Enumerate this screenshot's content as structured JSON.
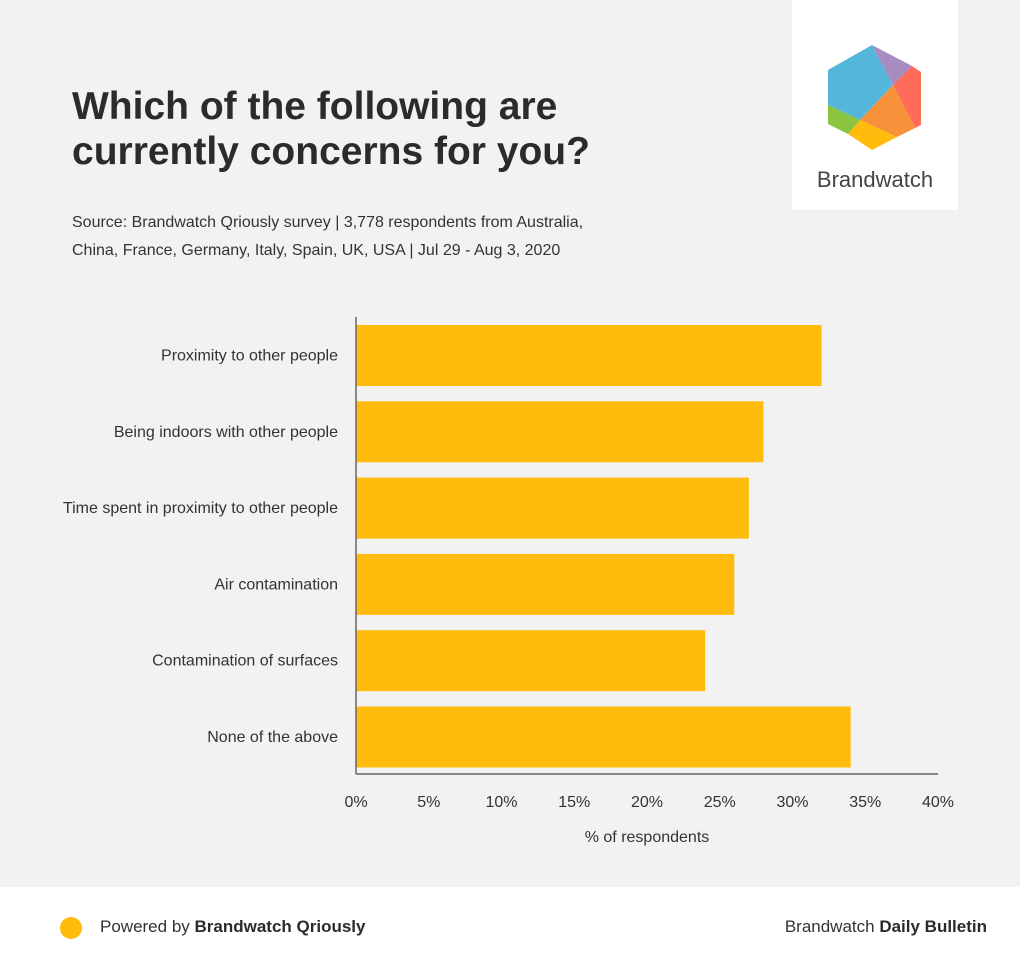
{
  "header": {
    "title_line1": "Which of the following are",
    "title_line2": "currently concerns for you?",
    "source_line1": "Source: Brandwatch Qriously survey | 3,778 respondents from Australia,",
    "source_line2": "China, France, Germany, Italy, Spain, UK, USA | Jul 29 - Aug 3, 2020"
  },
  "logo": {
    "text": "Brandwatch"
  },
  "footer": {
    "powered_prefix": "Powered by ",
    "powered_brand": "Brandwatch Qriously",
    "bulletin_prefix": "Brandwatch ",
    "bulletin_name": "Daily Bulletin"
  },
  "chart_data": {
    "type": "bar",
    "orientation": "horizontal",
    "categories": [
      "Proximity to other people",
      "Being indoors with other people",
      "Time spent in proximity to other people",
      "Air contamination",
      "Contamination of surfaces",
      "None of the above"
    ],
    "values": [
      32,
      28,
      27,
      26,
      24,
      34
    ],
    "xlabel": "% of respondents",
    "xlim": [
      0,
      40
    ],
    "xticks": [
      "0%",
      "5%",
      "10%",
      "15%",
      "20%",
      "25%",
      "30%",
      "35%",
      "40%"
    ],
    "bar_color": "#ffbc0d",
    "grid": false
  }
}
